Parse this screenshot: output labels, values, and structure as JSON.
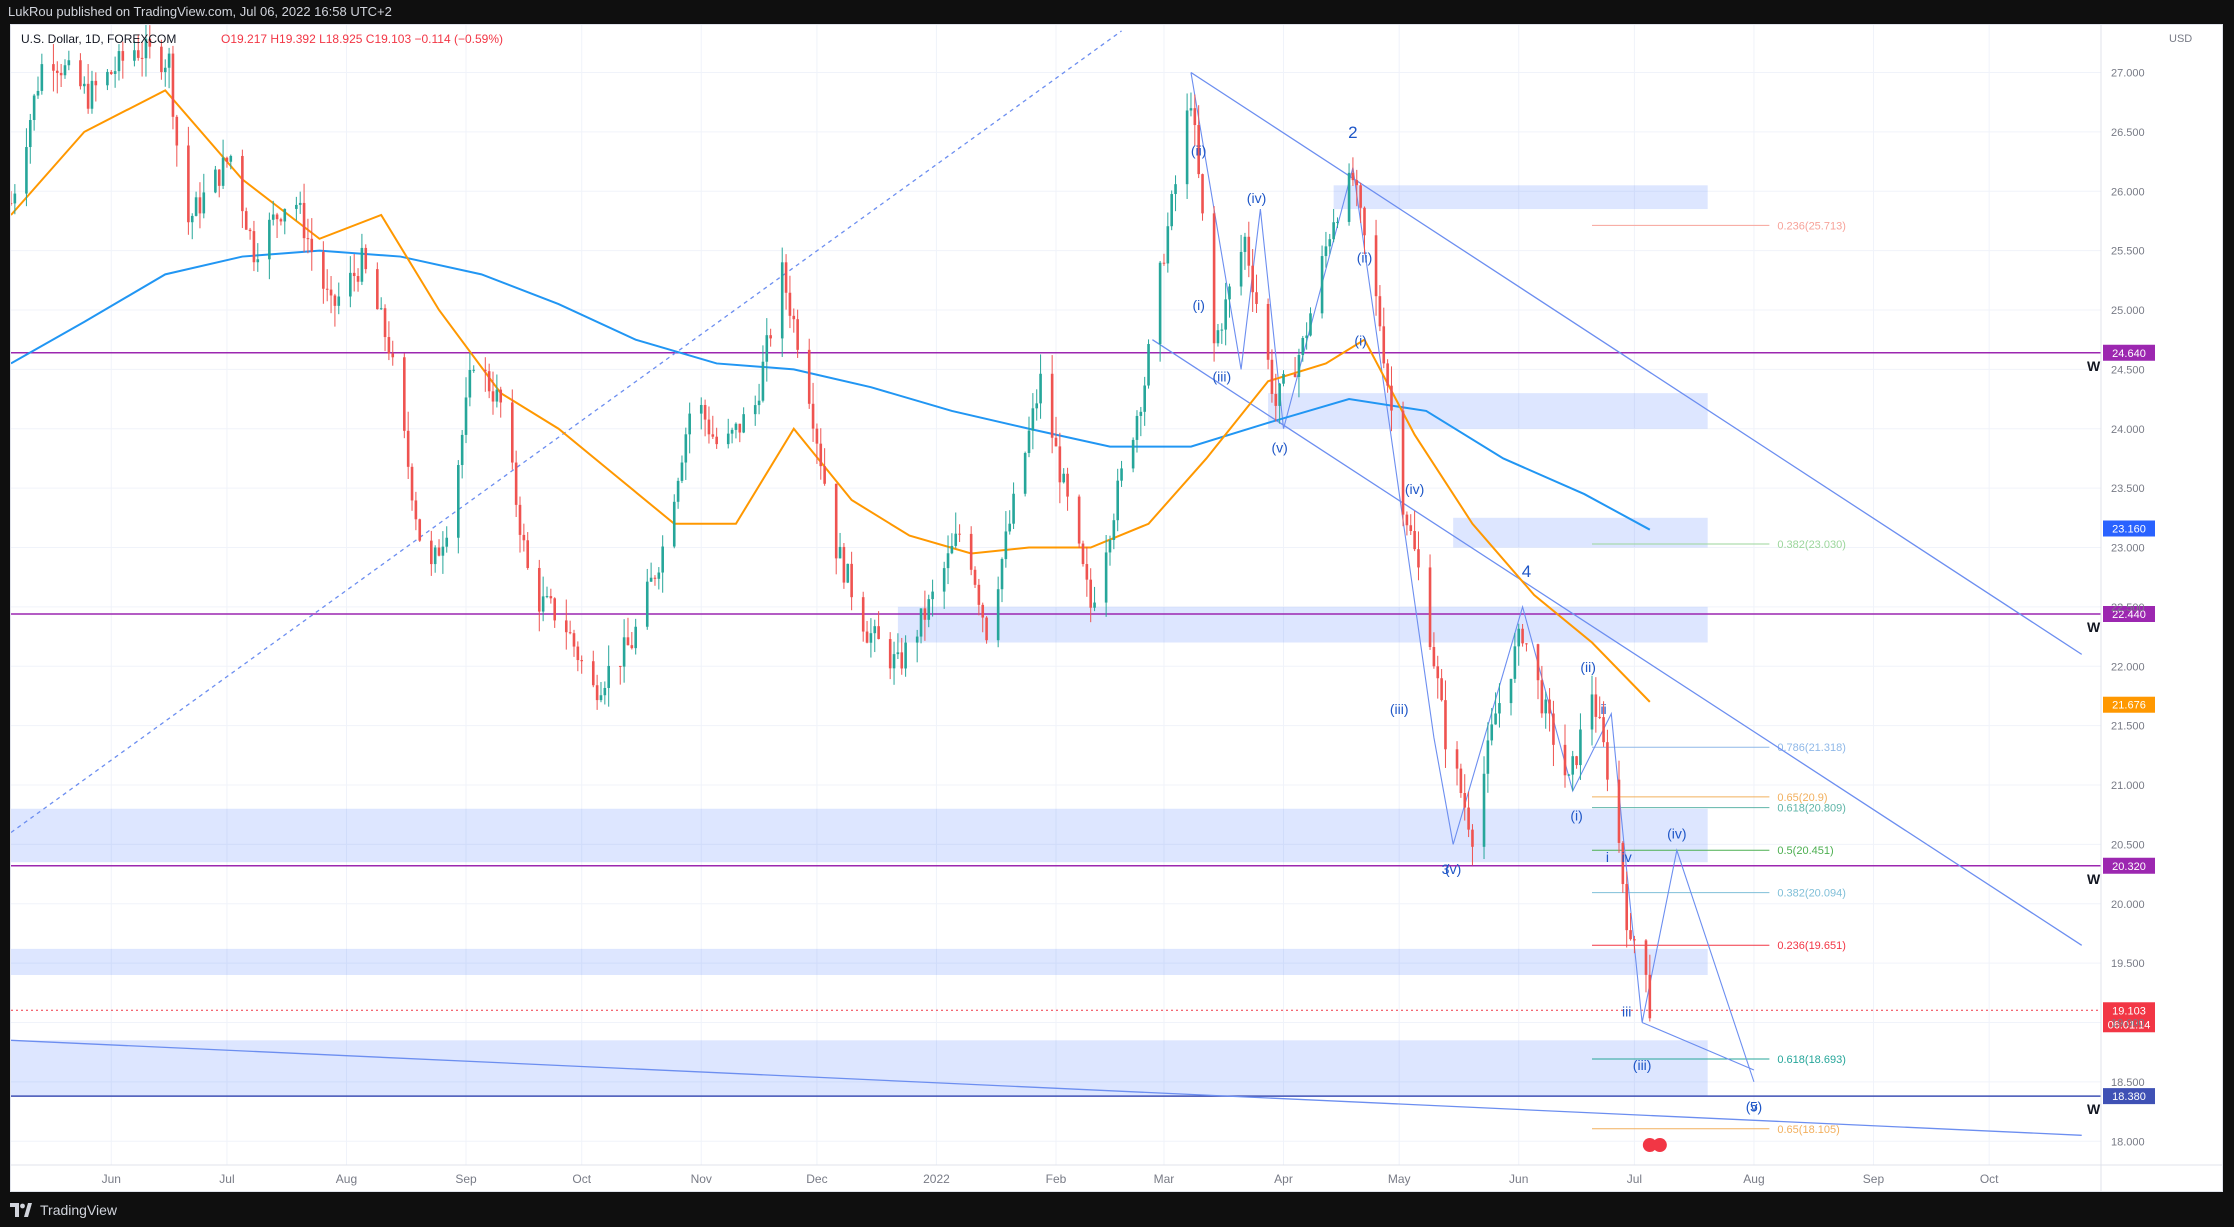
{
  "header": {
    "published_by": "LukRou published on TradingView.com, Jul 06, 2022 16:58 UTC+2"
  },
  "footer": {
    "brand": "TradingView"
  },
  "chart_data": {
    "type": "candlestick",
    "title": "U.S. Dollar, 1D, FOREXCOM",
    "ohlc_label": "O19.217 H19.392 L18.925 C19.103 −0.114 (−0.59%)",
    "currency": "USD",
    "ylim": [
      17.8,
      27.4
    ],
    "y_ticks": [
      "18.000",
      "18.500",
      "19.000",
      "19.500",
      "20.000",
      "20.500",
      "21.000",
      "21.500",
      "22.000",
      "22.500",
      "23.000",
      "23.500",
      "24.000",
      "24.500",
      "25.000",
      "25.500",
      "26.000",
      "26.500",
      "27.000"
    ],
    "x_range": [
      "2021-05-06",
      "2022-10-30"
    ],
    "x_ticks": [
      {
        "label": "Jun",
        "date": "2021-06-01"
      },
      {
        "label": "Jul",
        "date": "2021-07-01"
      },
      {
        "label": "Aug",
        "date": "2021-08-01"
      },
      {
        "label": "Sep",
        "date": "2021-09-01"
      },
      {
        "label": "Oct",
        "date": "2021-10-01"
      },
      {
        "label": "Nov",
        "date": "2021-11-01"
      },
      {
        "label": "Dec",
        "date": "2021-12-01"
      },
      {
        "label": "2022",
        "date": "2022-01-01"
      },
      {
        "label": "Feb",
        "date": "2022-02-01"
      },
      {
        "label": "Mar",
        "date": "2022-03-01"
      },
      {
        "label": "Apr",
        "date": "2022-04-01"
      },
      {
        "label": "May",
        "date": "2022-05-01"
      },
      {
        "label": "Jun",
        "date": "2022-06-01"
      },
      {
        "label": "Jul",
        "date": "2022-07-01"
      },
      {
        "label": "Aug",
        "date": "2022-08-01"
      },
      {
        "label": "Sep",
        "date": "2022-09-01"
      },
      {
        "label": "Oct",
        "date": "2022-10-01"
      }
    ],
    "price_path": [
      {
        "date": "2021-05-06",
        "price": 25.9
      },
      {
        "date": "2021-05-15",
        "price": 27.2
      },
      {
        "date": "2021-05-26",
        "price": 26.8
      },
      {
        "date": "2021-06-07",
        "price": 27.2
      },
      {
        "date": "2021-06-16",
        "price": 27.1
      },
      {
        "date": "2021-06-20",
        "price": 25.7
      },
      {
        "date": "2021-07-02",
        "price": 26.3
      },
      {
        "date": "2021-07-08",
        "price": 25.5
      },
      {
        "date": "2021-07-18",
        "price": 26.0
      },
      {
        "date": "2021-07-28",
        "price": 25.0
      },
      {
        "date": "2021-08-05",
        "price": 25.4
      },
      {
        "date": "2021-08-12",
        "price": 24.7
      },
      {
        "date": "2021-08-22",
        "price": 22.7
      },
      {
        "date": "2021-08-28",
        "price": 23.3
      },
      {
        "date": "2021-09-03",
        "price": 24.6
      },
      {
        "date": "2021-09-10",
        "price": 24.2
      },
      {
        "date": "2021-09-18",
        "price": 22.6
      },
      {
        "date": "2021-09-26",
        "price": 22.4
      },
      {
        "date": "2021-10-04",
        "price": 21.8
      },
      {
        "date": "2021-10-14",
        "price": 22.2
      },
      {
        "date": "2021-10-22",
        "price": 23.0
      },
      {
        "date": "2021-10-30",
        "price": 24.3
      },
      {
        "date": "2021-11-06",
        "price": 23.8
      },
      {
        "date": "2021-11-15",
        "price": 24.2
      },
      {
        "date": "2021-11-22",
        "price": 25.3
      },
      {
        "date": "2021-11-28",
        "price": 24.5
      },
      {
        "date": "2021-12-06",
        "price": 23.0
      },
      {
        "date": "2021-12-14",
        "price": 22.3
      },
      {
        "date": "2021-12-22",
        "price": 22.0
      },
      {
        "date": "2021-12-30",
        "price": 22.5
      },
      {
        "date": "2022-01-08",
        "price": 23.2
      },
      {
        "date": "2022-01-14",
        "price": 22.3
      },
      {
        "date": "2022-01-22",
        "price": 23.5
      },
      {
        "date": "2022-01-28",
        "price": 24.4
      },
      {
        "date": "2022-02-03",
        "price": 23.5
      },
      {
        "date": "2022-02-10",
        "price": 22.5
      },
      {
        "date": "2022-02-18",
        "price": 23.6
      },
      {
        "date": "2022-02-24",
        "price": 24.4
      },
      {
        "date": "2022-03-01",
        "price": 25.5
      },
      {
        "date": "2022-03-08",
        "price": 26.8
      },
      {
        "date": "2022-03-14",
        "price": 24.7
      },
      {
        "date": "2022-03-22",
        "price": 25.6
      },
      {
        "date": "2022-03-30",
        "price": 24.2
      },
      {
        "date": "2022-04-06",
        "price": 24.7
      },
      {
        "date": "2022-04-14",
        "price": 25.8
      },
      {
        "date": "2022-04-19",
        "price": 26.1
      },
      {
        "date": "2022-04-26",
        "price": 24.9
      },
      {
        "date": "2022-05-02",
        "price": 23.4
      },
      {
        "date": "2022-05-08",
        "price": 22.5
      },
      {
        "date": "2022-05-13",
        "price": 21.4
      },
      {
        "date": "2022-05-20",
        "price": 20.6
      },
      {
        "date": "2022-05-26",
        "price": 21.6
      },
      {
        "date": "2022-06-02",
        "price": 22.3
      },
      {
        "date": "2022-06-08",
        "price": 21.6
      },
      {
        "date": "2022-06-14",
        "price": 21.0
      },
      {
        "date": "2022-06-20",
        "price": 21.8
      },
      {
        "date": "2022-06-26",
        "price": 20.8
      },
      {
        "date": "2022-06-30",
        "price": 19.6
      },
      {
        "date": "2022-07-03",
        "price": 19.9
      },
      {
        "date": "2022-07-05",
        "price": 19.1
      }
    ],
    "ma_fast": [
      {
        "date": "2021-05-06",
        "price": 25.8
      },
      {
        "date": "2021-05-25",
        "price": 26.5
      },
      {
        "date": "2021-06-15",
        "price": 26.85
      },
      {
        "date": "2021-07-05",
        "price": 26.1
      },
      {
        "date": "2021-07-25",
        "price": 25.6
      },
      {
        "date": "2021-08-10",
        "price": 25.8
      },
      {
        "date": "2021-08-25",
        "price": 25.0
      },
      {
        "date": "2021-09-10",
        "price": 24.3
      },
      {
        "date": "2021-09-25",
        "price": 24.0
      },
      {
        "date": "2021-10-10",
        "price": 23.6
      },
      {
        "date": "2021-10-25",
        "price": 23.2
      },
      {
        "date": "2021-11-10",
        "price": 23.2
      },
      {
        "date": "2021-11-25",
        "price": 24.0
      },
      {
        "date": "2021-12-10",
        "price": 23.4
      },
      {
        "date": "2021-12-25",
        "price": 23.1
      },
      {
        "date": "2022-01-10",
        "price": 22.95
      },
      {
        "date": "2022-01-25",
        "price": 23.0
      },
      {
        "date": "2022-02-10",
        "price": 23.0
      },
      {
        "date": "2022-02-25",
        "price": 23.2
      },
      {
        "date": "2022-03-12",
        "price": 23.75
      },
      {
        "date": "2022-03-28",
        "price": 24.4
      },
      {
        "date": "2022-04-12",
        "price": 24.55
      },
      {
        "date": "2022-04-22",
        "price": 24.75
      },
      {
        "date": "2022-05-05",
        "price": 23.95
      },
      {
        "date": "2022-05-20",
        "price": 23.2
      },
      {
        "date": "2022-06-05",
        "price": 22.6
      },
      {
        "date": "2022-06-20",
        "price": 22.2
      },
      {
        "date": "2022-07-05",
        "price": 21.7
      }
    ],
    "ma_slow": [
      {
        "date": "2021-05-06",
        "price": 24.55
      },
      {
        "date": "2021-05-25",
        "price": 24.9
      },
      {
        "date": "2021-06-15",
        "price": 25.3
      },
      {
        "date": "2021-07-05",
        "price": 25.45
      },
      {
        "date": "2021-07-25",
        "price": 25.5
      },
      {
        "date": "2021-08-15",
        "price": 25.45
      },
      {
        "date": "2021-09-05",
        "price": 25.3
      },
      {
        "date": "2021-09-25",
        "price": 25.05
      },
      {
        "date": "2021-10-15",
        "price": 24.75
      },
      {
        "date": "2021-11-05",
        "price": 24.55
      },
      {
        "date": "2021-11-25",
        "price": 24.5
      },
      {
        "date": "2021-12-15",
        "price": 24.35
      },
      {
        "date": "2022-01-05",
        "price": 24.15
      },
      {
        "date": "2022-01-25",
        "price": 24.0
      },
      {
        "date": "2022-02-15",
        "price": 23.85
      },
      {
        "date": "2022-03-08",
        "price": 23.85
      },
      {
        "date": "2022-03-28",
        "price": 24.05
      },
      {
        "date": "2022-04-18",
        "price": 24.25
      },
      {
        "date": "2022-05-08",
        "price": 24.15
      },
      {
        "date": "2022-05-28",
        "price": 23.75
      },
      {
        "date": "2022-06-18",
        "price": 23.45
      },
      {
        "date": "2022-07-05",
        "price": 23.15
      }
    ],
    "horizontal_levels": [
      {
        "price": 24.64,
        "label": "24.640",
        "color": "#9c27b0",
        "tag": "W"
      },
      {
        "price": 22.44,
        "label": "22.440",
        "color": "#9c27b0",
        "tag": "W"
      },
      {
        "price": 20.32,
        "label": "20.320",
        "color": "#9c27b0",
        "tag": "W"
      },
      {
        "price": 18.38,
        "label": "18.380",
        "color": "#3f51b5",
        "tag": "W"
      }
    ],
    "price_labels": [
      {
        "price": 23.16,
        "label": "23.160",
        "color": "#2962ff"
      },
      {
        "price": 21.676,
        "label": "21.676",
        "color": "#ff9800"
      },
      {
        "price": 19.103,
        "label": "19.103",
        "sublabel": "06:01:14",
        "color": "#f23645"
      }
    ],
    "zones": [
      {
        "from": "2021-05-06",
        "to": "2022-07-20",
        "low": 20.35,
        "high": 20.8
      },
      {
        "from": "2021-05-06",
        "to": "2022-07-20",
        "low": 19.4,
        "high": 19.62
      },
      {
        "from": "2021-05-06",
        "to": "2022-07-20",
        "low": 18.38,
        "high": 18.85
      },
      {
        "from": "2021-12-22",
        "to": "2022-07-20",
        "low": 22.2,
        "high": 22.5
      },
      {
        "from": "2022-03-28",
        "to": "2022-07-20",
        "low": 24.0,
        "high": 24.3
      },
      {
        "from": "2022-04-14",
        "to": "2022-07-20",
        "low": 25.85,
        "high": 26.05
      },
      {
        "from": "2022-05-15",
        "to": "2022-07-20",
        "low": 23.0,
        "high": 23.25
      }
    ],
    "fib_levels": [
      {
        "price": 25.713,
        "label": "0.236(25.713)",
        "color": "#f7a39a"
      },
      {
        "price": 23.03,
        "label": "0.382(23.030)",
        "color": "#9bd69b"
      },
      {
        "price": 21.318,
        "label": "0.786(21.318)",
        "color": "#8fb8e8"
      },
      {
        "price": 20.9,
        "label": "0.65(20.9)",
        "color": "#f2b05e"
      },
      {
        "price": 20.809,
        "label": "0.618(20.809)",
        "color": "#5fb5a8"
      },
      {
        "price": 20.451,
        "label": "0.5(20.451)",
        "color": "#4caf50"
      },
      {
        "price": 20.094,
        "label": "0.382(20.094)",
        "color": "#7fbfd8"
      },
      {
        "price": 19.651,
        "label": "0.236(19.651)",
        "color": "#f23645"
      },
      {
        "price": 18.693,
        "label": "0.618(18.693)",
        "color": "#26a69a"
      },
      {
        "price": 18.105,
        "label": "0.65(18.105)",
        "color": "#f2b05e"
      }
    ],
    "wave_labels": [
      {
        "text": "2",
        "date": "2022-04-19",
        "price": 26.45,
        "size": "big"
      },
      {
        "text": "4",
        "date": "2022-06-03",
        "price": 22.75,
        "size": "big"
      },
      {
        "text": "(ii)",
        "date": "2022-03-10",
        "price": 26.3
      },
      {
        "text": "(i)",
        "date": "2022-03-10",
        "price": 25.0
      },
      {
        "text": "(iii)",
        "date": "2022-03-16",
        "price": 24.4
      },
      {
        "text": "(iv)",
        "date": "2022-03-25",
        "price": 25.9
      },
      {
        "text": "(v)",
        "date": "2022-03-31",
        "price": 23.8
      },
      {
        "text": "(ii)",
        "date": "2022-04-22",
        "price": 25.4
      },
      {
        "text": "(i)",
        "date": "2022-04-21",
        "price": 24.7
      },
      {
        "text": "(iv)",
        "date": "2022-05-05",
        "price": 23.45
      },
      {
        "text": "(iii)",
        "date": "2022-05-01",
        "price": 21.6
      },
      {
        "text": "3",
        "date": "2022-05-13",
        "price": 20.25
      },
      {
        "text": "(v)",
        "date": "2022-05-15",
        "price": 20.25
      },
      {
        "text": "(ii)",
        "date": "2022-06-19",
        "price": 21.95
      },
      {
        "text": "ii",
        "date": "2022-06-23",
        "price": 21.6
      },
      {
        "text": "(i)",
        "date": "2022-06-16",
        "price": 20.7
      },
      {
        "text": "i",
        "date": "2022-06-24",
        "price": 20.35
      },
      {
        "text": "iv",
        "date": "2022-06-29",
        "price": 20.35
      },
      {
        "text": "(iv)",
        "date": "2022-07-12",
        "price": 20.55
      },
      {
        "text": "iii",
        "date": "2022-06-29",
        "price": 19.05
      },
      {
        "text": "(iii)",
        "date": "2022-07-03",
        "price": 18.6
      },
      {
        "text": "5",
        "date": "2022-08-01",
        "price": 18.25
      },
      {
        "text": "(v)",
        "date": "2022-08-01",
        "price": 18.25
      }
    ]
  }
}
